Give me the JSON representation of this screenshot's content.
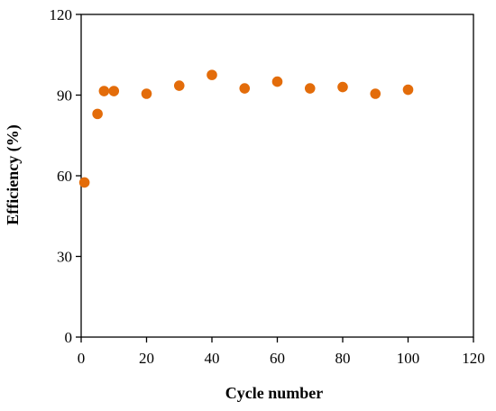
{
  "chart_data": {
    "type": "scatter",
    "xlabel": "Cycle number",
    "ylabel": "Efficiency (%)",
    "xlim": [
      0,
      120
    ],
    "ylim": [
      0,
      120
    ],
    "xticks": [
      0,
      20,
      40,
      60,
      80,
      100,
      120
    ],
    "yticks": [
      0,
      30,
      60,
      90,
      120
    ],
    "grid": false,
    "legend": "none",
    "marker_color": "#E36C0A",
    "series": [
      {
        "x": [
          1,
          5,
          7,
          10,
          20,
          30,
          40,
          50,
          60,
          70,
          80,
          90,
          100
        ],
        "y": [
          57.5,
          83,
          91.5,
          91.5,
          90.5,
          93.5,
          97.5,
          92.5,
          95,
          92.5,
          93,
          90.5,
          92
        ]
      }
    ]
  }
}
